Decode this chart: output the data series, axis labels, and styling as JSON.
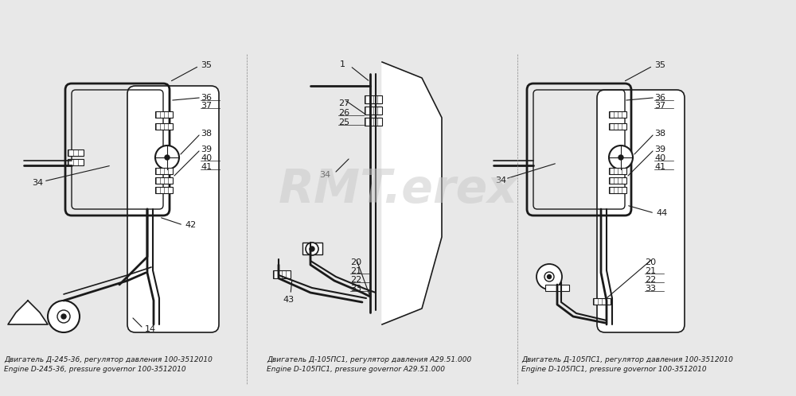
{
  "bg_color": "#e8e8e8",
  "line_color": "#1a1a1a",
  "watermark_color": "#c8c8c8",
  "watermark_text": "RMT.erex",
  "caption_left_ru": "Двигатель Д-245-36, регулятор давления 100-3512010",
  "caption_left_en": "Engine D-245-36, pressure governor 100-3512010",
  "caption_mid_ru": "Двигатель Д-105ПС1, регулятор давления А29.51.000",
  "caption_mid_en": "Engine D-105ПС1, pressure governor A29.51.000",
  "caption_right_ru": "Двигатель Д-105ПС1, регулятор давления 100-3512010",
  "caption_right_en": "Engine D-105ПС1, pressure governor 100-3512010"
}
